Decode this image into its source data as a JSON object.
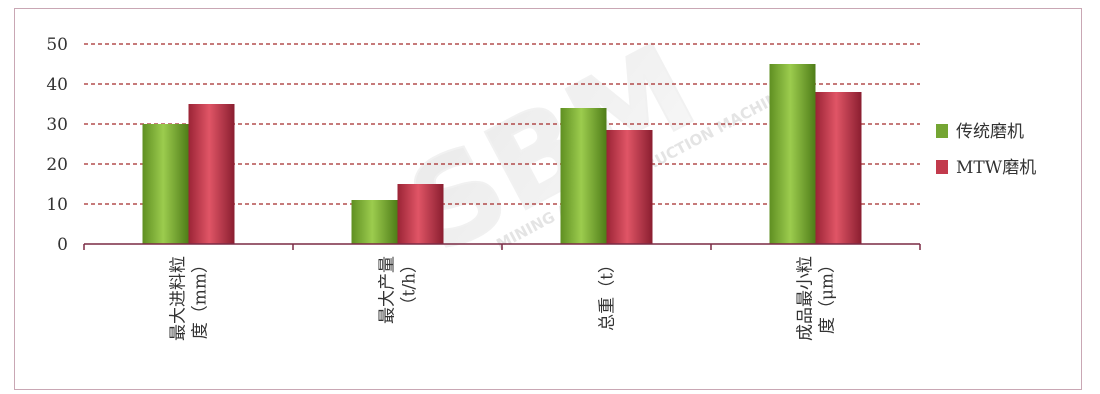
{
  "watermark": {
    "logo": "SBM",
    "text": "MINING AND CONSTRUCTION MACHINERY"
  },
  "chart_data": {
    "type": "bar",
    "title": "",
    "xlabel": "",
    "ylabel": "",
    "categories": [
      [
        "最大进料粒",
        "度（mm）"
      ],
      [
        "最大产量",
        "（t/h）"
      ],
      [
        "总重（t）"
      ],
      [
        "成品最小粒",
        "度（μm）"
      ]
    ],
    "series": [
      {
        "name": "传统磨机",
        "color": "#74a533",
        "values": [
          30,
          11,
          34,
          45
        ]
      },
      {
        "name": "MTW磨机",
        "color": "#c23a4c",
        "values": [
          35,
          15,
          28.5,
          38
        ]
      }
    ],
    "ylim": [
      0,
      50
    ],
    "yticks": [
      0,
      10,
      20,
      30,
      40,
      50
    ],
    "grid": true,
    "grid_color": "#a52a2a",
    "legend_position": "right"
  }
}
